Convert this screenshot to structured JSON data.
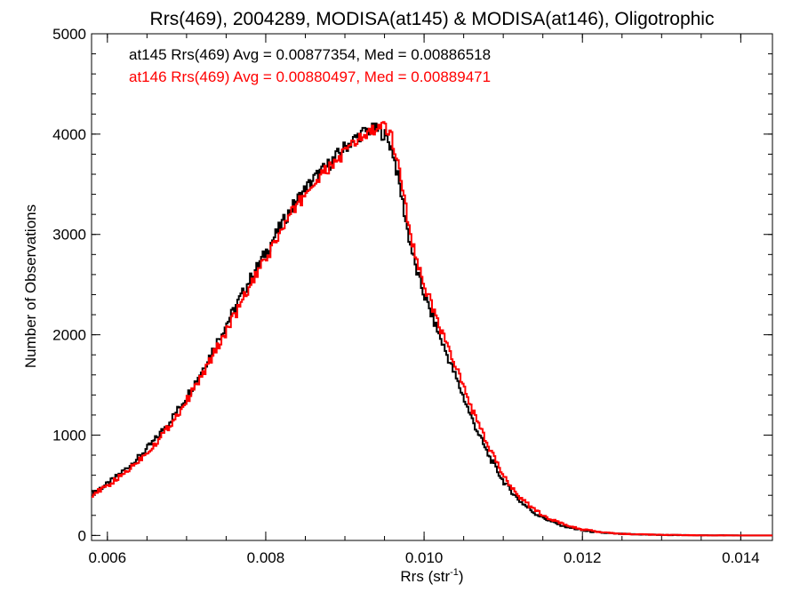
{
  "chart_data": {
    "type": "line",
    "title": "Rrs(469), 2004289, MODISA(at145) & MODISA(at146), Oligotrophic",
    "xlabel": "Rrs (str",
    "xlabel_sup": "-1",
    "xlabel_tail": ")",
    "ylabel": "Number of Observations",
    "xlim": [
      0.0058,
      0.0144
    ],
    "ylim": [
      -50,
      5000
    ],
    "xticks": [
      0.006,
      0.008,
      0.01,
      0.012,
      0.014
    ],
    "xtick_labels": [
      "0.006",
      "0.008",
      "0.010",
      "0.012",
      "0.014"
    ],
    "yticks": [
      0,
      1000,
      2000,
      3000,
      4000,
      5000
    ],
    "ytick_labels": [
      "0",
      "1000",
      "2000",
      "3000",
      "4000",
      "5000"
    ],
    "grid": false,
    "step": true,
    "annotations": [
      {
        "text": "at145 Rrs(469) Avg = 0.00877354, Med = 0.00886518",
        "color": "#000000"
      },
      {
        "text": "at146 Rrs(469) Avg = 0.00880497, Med = 0.00889471",
        "color": "#ff0000"
      }
    ],
    "series": [
      {
        "color": "#000000",
        "x": [
          0.0058,
          0.006,
          0.0062,
          0.0064,
          0.0066,
          0.0068,
          0.007,
          0.0072,
          0.0074,
          0.0076,
          0.0078,
          0.008,
          0.0082,
          0.0084,
          0.0086,
          0.0088,
          0.009,
          0.0092,
          0.0093,
          0.0094,
          0.0095,
          0.0096,
          0.0097,
          0.0098,
          0.0099,
          0.01,
          0.0102,
          0.0104,
          0.0106,
          0.0108,
          0.011,
          0.0112,
          0.0114,
          0.0116,
          0.0118,
          0.012,
          0.0122,
          0.0124,
          0.0126,
          0.0128,
          0.013,
          0.0132,
          0.0134,
          0.0136,
          0.0138,
          0.014,
          0.0142,
          0.0144
        ],
        "y": [
          420,
          510,
          640,
          780,
          950,
          1150,
          1380,
          1650,
          1950,
          2250,
          2550,
          2820,
          3100,
          3350,
          3550,
          3700,
          3870,
          4000,
          4040,
          4040,
          4000,
          3850,
          3450,
          3000,
          2650,
          2400,
          1980,
          1580,
          1170,
          820,
          540,
          350,
          220,
          140,
          85,
          50,
          30,
          18,
          12,
          8,
          5,
          3,
          2,
          1,
          1,
          0,
          0,
          0
        ]
      },
      {
        "color": "#ff0000",
        "x": [
          0.0058,
          0.006,
          0.0062,
          0.0064,
          0.0066,
          0.0068,
          0.007,
          0.0072,
          0.0074,
          0.0076,
          0.0078,
          0.008,
          0.0082,
          0.0084,
          0.0086,
          0.0088,
          0.009,
          0.0092,
          0.0093,
          0.0094,
          0.0095,
          0.0096,
          0.0097,
          0.0098,
          0.0099,
          0.01,
          0.0102,
          0.0104,
          0.0106,
          0.0108,
          0.011,
          0.0112,
          0.0114,
          0.0116,
          0.0118,
          0.012,
          0.0122,
          0.0124,
          0.0126,
          0.0128,
          0.013,
          0.0132,
          0.0134,
          0.0136,
          0.0138,
          0.014,
          0.0142,
          0.0144
        ],
        "y": [
          400,
          490,
          610,
          750,
          910,
          1110,
          1340,
          1600,
          1890,
          2180,
          2480,
          2750,
          3040,
          3300,
          3500,
          3660,
          3820,
          3960,
          4010,
          4050,
          4060,
          3950,
          3620,
          3120,
          2750,
          2500,
          2080,
          1680,
          1270,
          900,
          600,
          390,
          250,
          160,
          100,
          60,
          35,
          20,
          13,
          9,
          6,
          4,
          2,
          1,
          1,
          0,
          0,
          0
        ]
      }
    ]
  }
}
